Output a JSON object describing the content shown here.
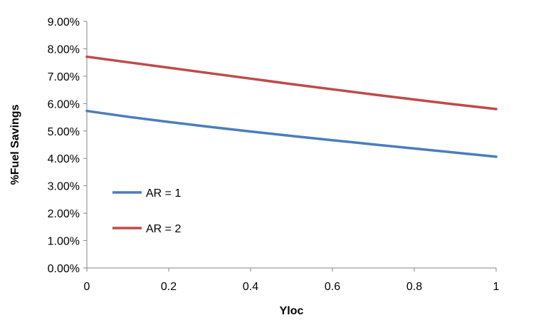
{
  "chart_data": {
    "type": "line",
    "title": "",
    "xlabel": "Yloc",
    "ylabel": "%Fuel Savings",
    "xlim": [
      0,
      1
    ],
    "ylim": [
      0,
      0.09
    ],
    "x_ticks": [
      0,
      0.2,
      0.4,
      0.6,
      0.8,
      1
    ],
    "x_tick_labels": [
      "0",
      "0.2",
      "0.4",
      "0.6",
      "0.8",
      "1"
    ],
    "y_ticks": [
      0,
      0.01,
      0.02,
      0.03,
      0.04,
      0.05,
      0.06,
      0.07,
      0.08,
      0.09
    ],
    "y_tick_labels": [
      "0.00%",
      "1.00%",
      "2.00%",
      "3.00%",
      "4.00%",
      "5.00%",
      "6.00%",
      "7.00%",
      "8.00%",
      "9.00%"
    ],
    "grid": false,
    "legend_position": "center-left",
    "x": [
      0,
      0.1,
      0.2,
      0.3,
      0.4,
      0.5,
      0.6,
      0.7,
      0.8,
      0.9,
      1.0
    ],
    "series": [
      {
        "name": "AR = 1",
        "color": "#4a7ebb",
        "values": [
          0.0573,
          0.0552,
          0.0533,
          0.0515,
          0.0498,
          0.0482,
          0.0466,
          0.0451,
          0.0436,
          0.0421,
          0.0406
        ]
      },
      {
        "name": "AR = 2",
        "color": "#be4b48",
        "values": [
          0.0771,
          0.0751,
          0.0731,
          0.0711,
          0.0691,
          0.0671,
          0.0652,
          0.0633,
          0.0615,
          0.0597,
          0.058
        ]
      }
    ]
  }
}
